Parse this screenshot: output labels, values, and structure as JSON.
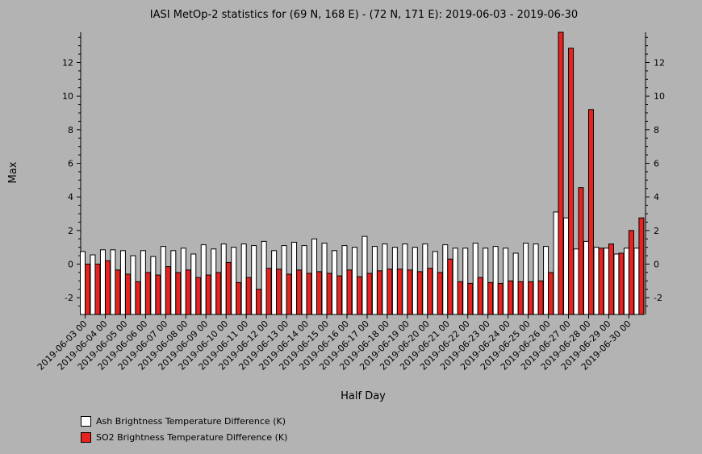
{
  "chart_data": {
    "type": "bar",
    "title": "IASI MetOp-2 statistics for (69 N, 168 E) - (72 N, 171 E): 2019-06-03 - 2019-06-30",
    "xlabel": "Half Day",
    "ylabel": "Max",
    "ylim": [
      -3,
      13.8
    ],
    "yticks": [
      -2,
      0,
      2,
      4,
      6,
      8,
      10,
      12
    ],
    "ytick_labels": [
      "-2",
      "0",
      "2",
      "4",
      "6",
      "8",
      "10",
      "12"
    ],
    "grid": false,
    "legend_position": "bottom-left",
    "date_labels": [
      "2019-06-03 00",
      "2019-06-04 00",
      "2019-06-05 00",
      "2019-06-06 00",
      "2019-06-07 00",
      "2019-06-08 00",
      "2019-06-09 00",
      "2019-06-10 00",
      "2019-06-11 00",
      "2019-06-12 00",
      "2019-06-13 00",
      "2019-06-14 00",
      "2019-06-15 00",
      "2019-06-16 00",
      "2019-06-17 00",
      "2019-06-18 00",
      "2019-06-19 00",
      "2019-06-20 00",
      "2019-06-21 00",
      "2019-06-22 00",
      "2019-06-23 00",
      "2019-06-24 00",
      "2019-06-25 00",
      "2019-06-26 00",
      "2019-06-27 00",
      "2019-06-28 00",
      "2019-06-29 00",
      "2019-06-30 00"
    ],
    "categories": [
      "2019-06-03 00",
      "2019-06-03 12",
      "2019-06-04 00",
      "2019-06-04 12",
      "2019-06-05 00",
      "2019-06-05 12",
      "2019-06-06 00",
      "2019-06-06 12",
      "2019-06-07 00",
      "2019-06-07 12",
      "2019-06-08 00",
      "2019-06-08 12",
      "2019-06-09 00",
      "2019-06-09 12",
      "2019-06-10 00",
      "2019-06-10 12",
      "2019-06-11 00",
      "2019-06-11 12",
      "2019-06-12 00",
      "2019-06-12 12",
      "2019-06-13 00",
      "2019-06-13 12",
      "2019-06-14 00",
      "2019-06-14 12",
      "2019-06-15 00",
      "2019-06-15 12",
      "2019-06-16 00",
      "2019-06-16 12",
      "2019-06-17 00",
      "2019-06-17 12",
      "2019-06-18 00",
      "2019-06-18 12",
      "2019-06-19 00",
      "2019-06-19 12",
      "2019-06-20 00",
      "2019-06-20 12",
      "2019-06-21 00",
      "2019-06-21 12",
      "2019-06-22 00",
      "2019-06-22 12",
      "2019-06-23 00",
      "2019-06-23 12",
      "2019-06-24 00",
      "2019-06-24 12",
      "2019-06-25 00",
      "2019-06-25 12",
      "2019-06-26 00",
      "2019-06-26 12",
      "2019-06-27 00",
      "2019-06-27 12",
      "2019-06-28 00",
      "2019-06-28 12",
      "2019-06-29 00",
      "2019-06-29 12",
      "2019-06-30 00",
      "2019-06-30 12"
    ],
    "series": [
      {
        "name": "Ash Brightness Temperature Difference (K)",
        "color": "#ffffff",
        "values": [
          0.75,
          0.55,
          0.85,
          0.85,
          0.8,
          0.5,
          0.8,
          0.45,
          1.05,
          0.8,
          0.95,
          0.6,
          1.15,
          0.9,
          1.2,
          1.0,
          1.2,
          1.1,
          1.35,
          0.8,
          1.1,
          1.3,
          1.1,
          1.5,
          1.25,
          0.8,
          1.1,
          1.0,
          1.65,
          1.05,
          1.2,
          1.0,
          1.2,
          1.0,
          1.2,
          0.75,
          1.15,
          0.95,
          0.95,
          1.25,
          0.95,
          1.05,
          0.95,
          0.65,
          1.25,
          1.2,
          1.05,
          3.1,
          2.75,
          0.9,
          1.35,
          1.0,
          0.95,
          0.6,
          0.95,
          0.95
        ]
      },
      {
        "name": "SO2 Brightness Temperature Difference (K)",
        "color": "#e8231f",
        "values": [
          0.0,
          0.0,
          0.2,
          -0.35,
          -0.6,
          -1.05,
          -0.5,
          -0.65,
          -0.15,
          -0.5,
          -0.35,
          -0.8,
          -0.65,
          -0.5,
          0.1,
          -1.1,
          -0.8,
          -1.5,
          -0.25,
          -0.3,
          -0.6,
          -0.35,
          -0.55,
          -0.45,
          -0.55,
          -0.7,
          -0.35,
          -0.75,
          -0.55,
          -0.4,
          -0.3,
          -0.3,
          -0.35,
          -0.45,
          -0.25,
          -0.5,
          0.3,
          -1.05,
          -1.15,
          -0.8,
          -1.1,
          -1.15,
          -1.0,
          -1.05,
          -1.05,
          -1.0,
          -0.5,
          13.8,
          12.85,
          4.55,
          9.2,
          0.95,
          1.2,
          0.65,
          2.0,
          2.75
        ]
      }
    ]
  }
}
